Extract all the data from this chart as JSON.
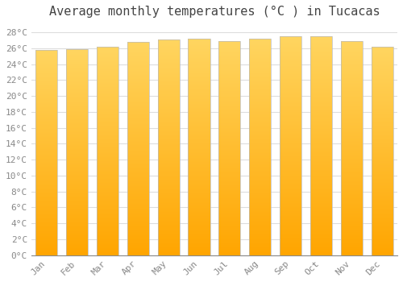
{
  "title": "Average monthly temperatures (°C ) in Tucacas",
  "months": [
    "Jan",
    "Feb",
    "Mar",
    "Apr",
    "May",
    "Jun",
    "Jul",
    "Aug",
    "Sep",
    "Oct",
    "Nov",
    "Dec"
  ],
  "values": [
    25.8,
    25.9,
    26.2,
    26.8,
    27.1,
    27.2,
    26.9,
    27.2,
    27.5,
    27.5,
    26.9,
    26.2
  ],
  "bar_color_bottom": "#FFA500",
  "bar_color_top": "#FFD966",
  "bar_edge_color": "#BBBBBB",
  "background_color": "#FFFFFF",
  "plot_bg_color": "#FFFFFF",
  "grid_color": "#DDDDDD",
  "ylim": [
    0,
    29
  ],
  "ytick_step": 2,
  "title_fontsize": 11,
  "tick_fontsize": 8,
  "bar_width": 0.72
}
